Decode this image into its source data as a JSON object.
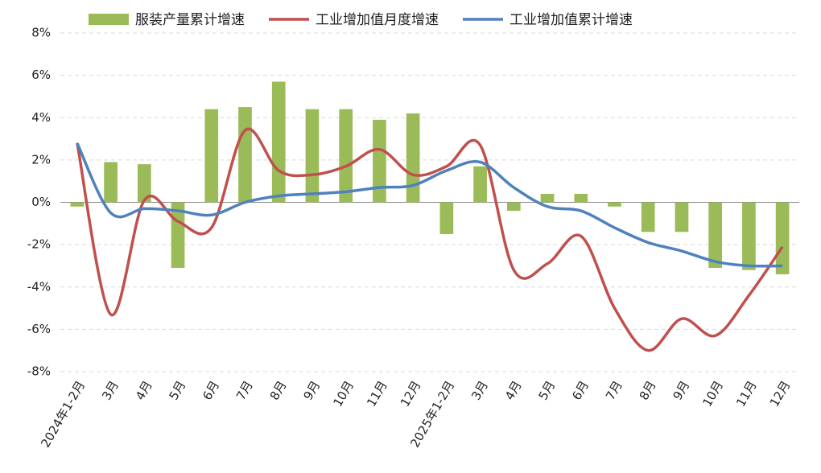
{
  "chart_data": {
    "type": "bar-line",
    "categories": [
      "2024年1-2月",
      "3月",
      "4月",
      "5月",
      "6月",
      "7月",
      "8月",
      "9月",
      "10月",
      "11月",
      "12月",
      "2025年1-2月",
      "3月",
      "4月",
      "5月",
      "6月",
      "7月",
      "8月",
      "9月",
      "10月",
      "11月",
      "12月"
    ],
    "series": [
      {
        "name": "服装产量累计增速",
        "kind": "bar",
        "color": "#9bbb59",
        "values": [
          -0.2,
          1.9,
          1.8,
          -3.1,
          4.4,
          4.5,
          5.7,
          4.4,
          4.4,
          3.9,
          4.2,
          -1.5,
          1.7,
          -0.4,
          0.4,
          0.4,
          -0.2,
          -1.4,
          -1.4,
          -3.1,
          -3.2,
          -3.4
        ]
      },
      {
        "name": "工业增加值月度增速",
        "kind": "line",
        "color": "#c0504d",
        "values": [
          2.8,
          -5.3,
          0.1,
          -0.9,
          -1.2,
          3.4,
          1.5,
          1.3,
          1.7,
          2.5,
          1.3,
          1.7,
          2.7,
          -3.2,
          -2.9,
          -1.6,
          -5.0,
          -7.0,
          -5.5,
          -6.3,
          -4.4,
          -2.1
        ]
      },
      {
        "name": "工业增加值累计增速",
        "kind": "line",
        "color": "#4f81bd",
        "values": [
          2.8,
          -0.5,
          -0.3,
          -0.4,
          -0.6,
          0.0,
          0.3,
          0.4,
          0.5,
          0.7,
          0.8,
          1.5,
          1.9,
          0.7,
          -0.2,
          -0.4,
          -1.2,
          -1.9,
          -2.3,
          -2.8,
          -3.0,
          -3.0
        ]
      }
    ],
    "ylim": [
      -8,
      8
    ],
    "yticks": [
      {
        "value": -8,
        "label": "-8%"
      },
      {
        "value": -6,
        "label": "-6%"
      },
      {
        "value": -4,
        "label": "-4%"
      },
      {
        "value": -2,
        "label": "-2%"
      },
      {
        "value": 0,
        "label": "0%"
      },
      {
        "value": 2,
        "label": "2%"
      },
      {
        "value": 4,
        "label": "4%"
      },
      {
        "value": 6,
        "label": "6%"
      },
      {
        "value": 8,
        "label": "8%"
      }
    ],
    "grid": true,
    "legend": "top"
  }
}
